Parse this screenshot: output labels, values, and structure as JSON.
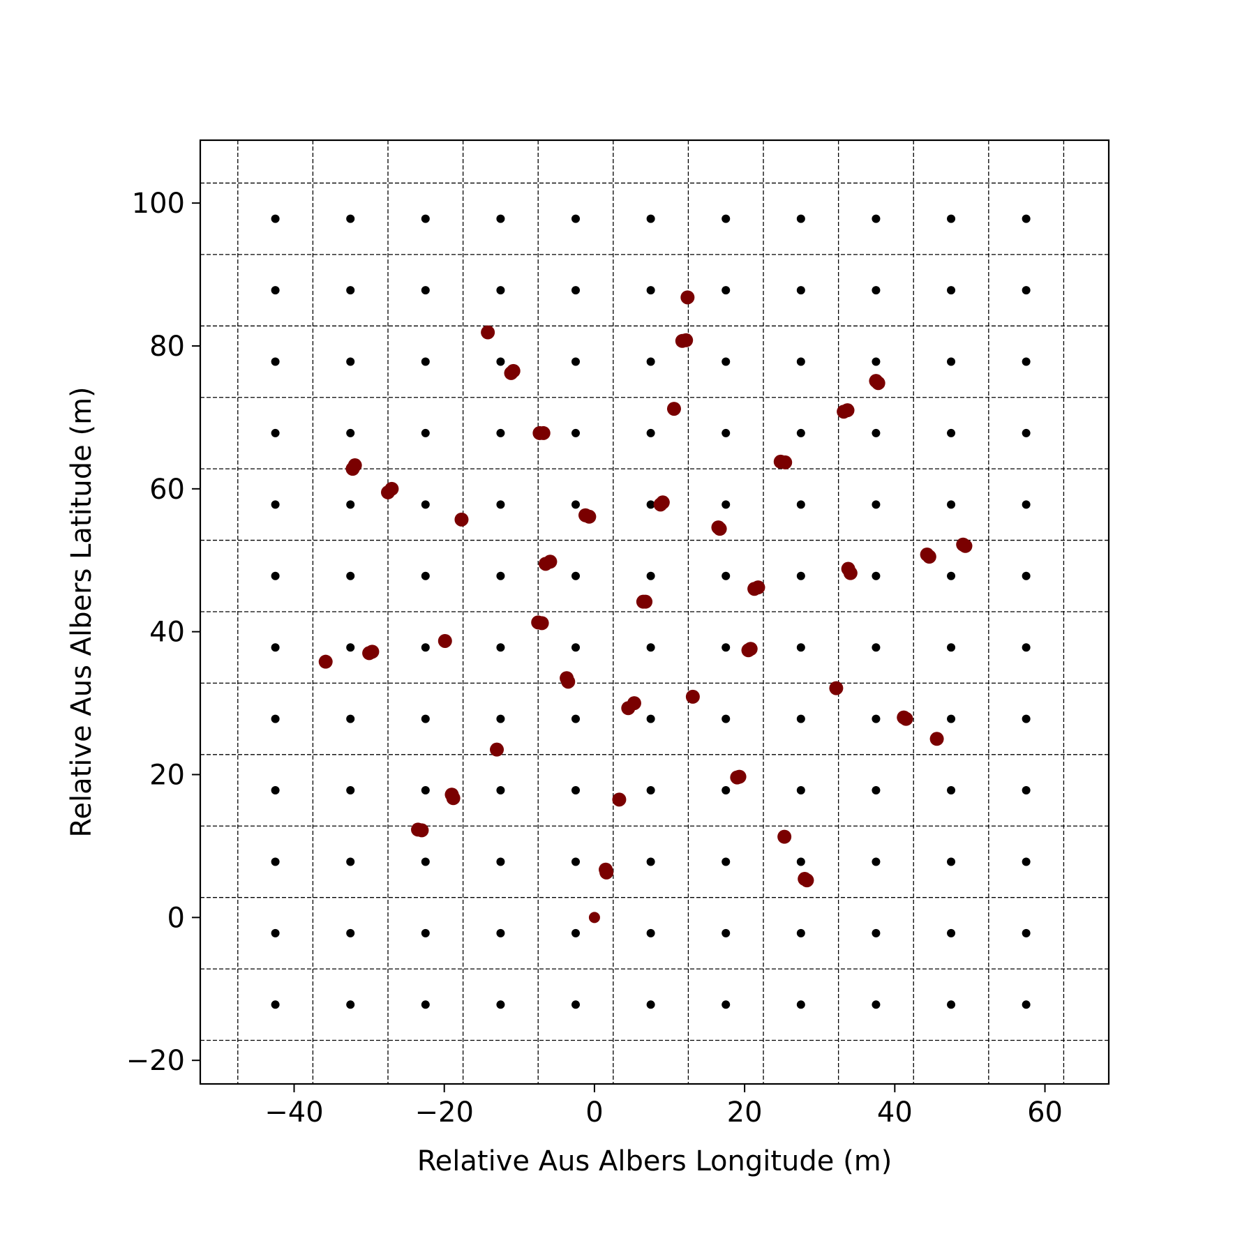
{
  "chart_data": {
    "type": "scatter",
    "title": "",
    "xlabel": "Relative Aus Albers Longitude (m)",
    "ylabel": "Relative Aus Albers Latitude (m)",
    "xlim": [
      -52.5,
      68.5
    ],
    "ylim": [
      -23.3,
      108.8
    ],
    "x_ticks": [
      -40,
      -20,
      0,
      20,
      40,
      60
    ],
    "y_ticks": [
      -20,
      0,
      20,
      40,
      60,
      80,
      100
    ],
    "x_tick_labels": [
      "−40",
      "−20",
      "0",
      "20",
      "40",
      "60"
    ],
    "y_tick_labels": [
      "−20",
      "0",
      "20",
      "40",
      "60",
      "80",
      "100"
    ],
    "grid_x": [
      -47.5,
      -37.5,
      -27.5,
      -17.5,
      -7.5,
      2.5,
      12.5,
      22.5,
      32.5,
      42.5,
      52.5,
      62.5
    ],
    "grid_y": [
      -17.2,
      -7.2,
      2.8,
      12.8,
      22.8,
      32.8,
      42.8,
      52.8,
      62.8,
      72.8,
      82.8,
      92.8,
      102.8
    ],
    "grid_style": "dashed",
    "series": [
      {
        "color": "#000000",
        "grid_x": [
          -42.5,
          -32.5,
          -22.5,
          -12.5,
          -2.5,
          7.5,
          17.5,
          27.5,
          37.5,
          47.5,
          57.5
        ],
        "grid_y": [
          -12.2,
          -2.2,
          7.8,
          17.8,
          27.8,
          37.8,
          47.8,
          57.8,
          67.8,
          77.8,
          87.8,
          97.8
        ]
      },
      {
        "color": "#7a0000",
        "points": [
          [
            0,
            0
          ],
          [
            1.5,
            6.7
          ],
          [
            1.6,
            6.3
          ],
          [
            3.3,
            16.5
          ],
          [
            25.3,
            11.3
          ],
          [
            28.0,
            5.4
          ],
          [
            28.3,
            5.2
          ],
          [
            -23.5,
            12.3
          ],
          [
            -23.0,
            12.2
          ],
          [
            -19.0,
            17.2
          ],
          [
            -18.8,
            16.7
          ],
          [
            -13.0,
            23.5
          ],
          [
            19.0,
            19.6
          ],
          [
            19.3,
            19.7
          ],
          [
            4.5,
            29.3
          ],
          [
            5.3,
            30.0
          ],
          [
            13.1,
            30.9
          ],
          [
            -3.7,
            33.5
          ],
          [
            -3.5,
            33.0
          ],
          [
            20.5,
            37.4
          ],
          [
            20.8,
            37.6
          ],
          [
            32.2,
            32.1
          ],
          [
            41.2,
            28.0
          ],
          [
            41.5,
            27.8
          ],
          [
            45.6,
            25.0
          ],
          [
            -35.8,
            35.8
          ],
          [
            -30.0,
            37.0
          ],
          [
            -29.6,
            37.2
          ],
          [
            -19.9,
            38.7
          ],
          [
            -7.5,
            41.3
          ],
          [
            -7.0,
            41.2
          ],
          [
            6.5,
            44.2
          ],
          [
            6.8,
            44.2
          ],
          [
            -6.5,
            49.5
          ],
          [
            -5.9,
            49.8
          ],
          [
            21.3,
            46.0
          ],
          [
            21.8,
            46.2
          ],
          [
            33.8,
            48.8
          ],
          [
            34.1,
            48.2
          ],
          [
            44.3,
            50.8
          ],
          [
            44.6,
            50.5
          ],
          [
            49.1,
            52.2
          ],
          [
            49.4,
            52.0
          ],
          [
            -17.7,
            55.7
          ],
          [
            -1.2,
            56.3
          ],
          [
            -0.7,
            56.1
          ],
          [
            8.8,
            57.8
          ],
          [
            9.1,
            58.1
          ],
          [
            16.5,
            54.6
          ],
          [
            16.7,
            54.4
          ],
          [
            -27.5,
            59.5
          ],
          [
            -27.0,
            60.0
          ],
          [
            -32.2,
            62.8
          ],
          [
            -31.9,
            63.3
          ],
          [
            -7.3,
            67.8
          ],
          [
            -6.8,
            67.8
          ],
          [
            24.8,
            63.8
          ],
          [
            25.4,
            63.7
          ],
          [
            10.6,
            71.2
          ],
          [
            33.2,
            70.8
          ],
          [
            33.7,
            71.0
          ],
          [
            37.5,
            75.1
          ],
          [
            37.8,
            74.8
          ],
          [
            -14.2,
            81.9
          ],
          [
            -11.1,
            76.2
          ],
          [
            -10.8,
            76.5
          ],
          [
            11.7,
            80.7
          ],
          [
            12.2,
            80.8
          ],
          [
            12.4,
            86.8
          ]
        ]
      }
    ]
  }
}
